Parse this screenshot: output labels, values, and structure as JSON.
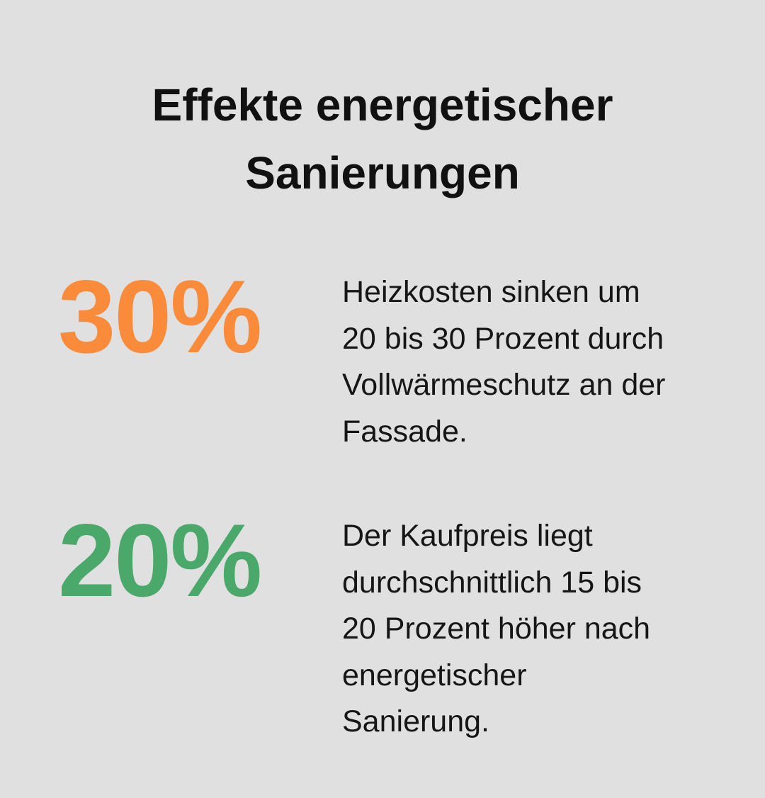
{
  "header": {
    "title_lines": [
      "Effekte energetischer",
      "Sanierungen"
    ]
  },
  "stats": [
    {
      "value": "30%",
      "color": "#f98b3a",
      "description_lines": [
        "Heizkosten sinken um",
        "20 bis 30 Prozent durch",
        "Vollwärmeschutz an der",
        "Fassade."
      ]
    },
    {
      "value": "20%",
      "color": "#4aa86b",
      "description_lines": [
        "Der Kaufpreis liegt",
        "durchschnittlich 15 bis",
        "20 Prozent höher nach",
        "energetischer",
        "Sanierung."
      ]
    }
  ]
}
